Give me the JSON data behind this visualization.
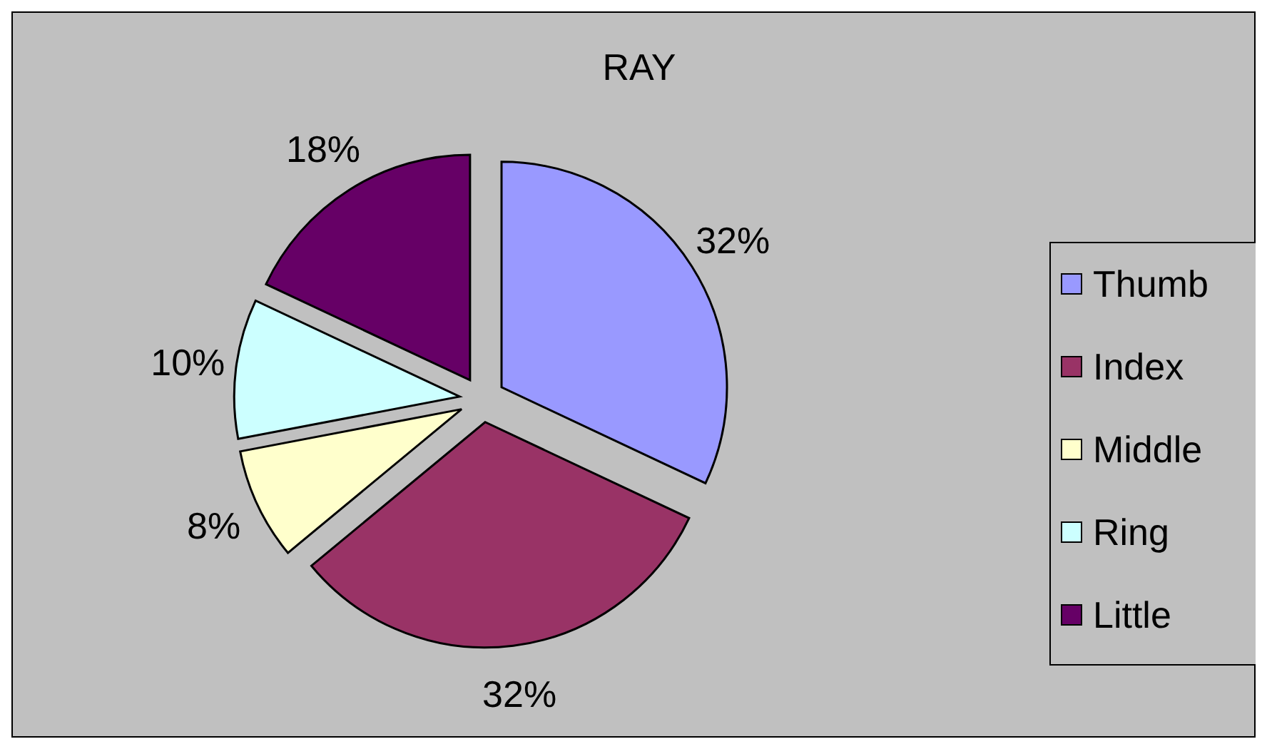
{
  "chart_data": {
    "type": "pie",
    "title": "RAY",
    "categories": [
      "Thumb",
      "Index",
      "Middle",
      "Ring",
      "Little"
    ],
    "values": [
      32,
      32,
      8,
      10,
      18
    ],
    "colors": [
      "#9999ff",
      "#993366",
      "#ffffcc",
      "#ccffff",
      "#660066"
    ],
    "value_labels": [
      "32%",
      "32%",
      "8%",
      "10%",
      "18%"
    ],
    "legend": "right"
  }
}
